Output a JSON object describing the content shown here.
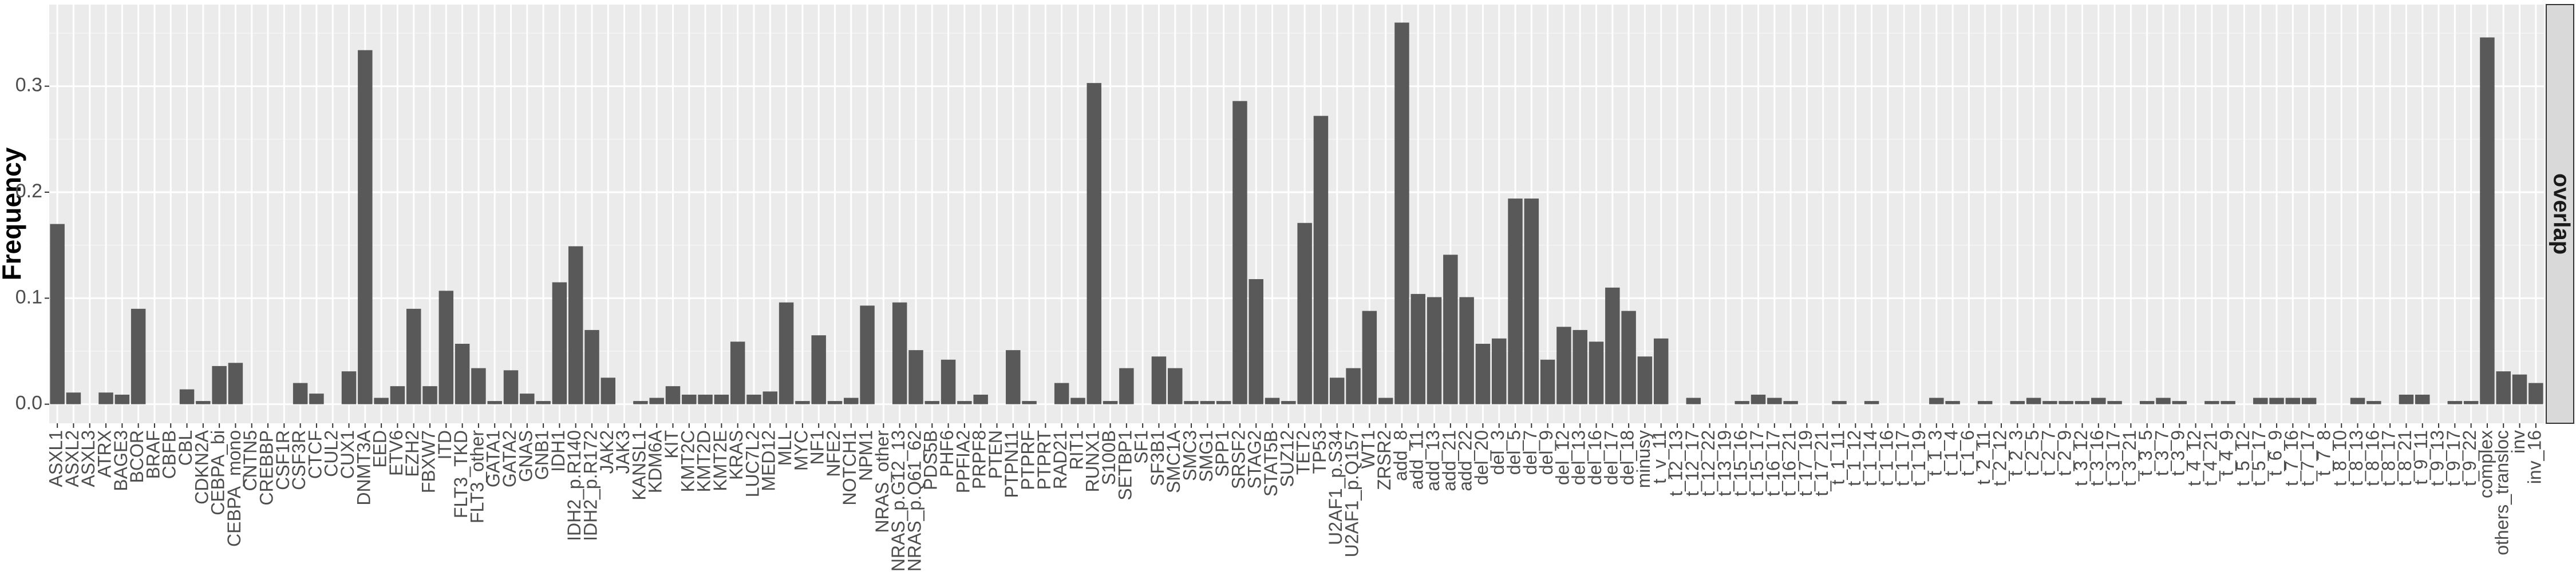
{
  "chart_data": {
    "type": "bar",
    "y_label": "Frequency",
    "facet": "overlap",
    "color": "#595959",
    "grid": true,
    "ylim": [
      -0.018,
      0.377
    ],
    "yticks": [
      {
        "value": 0,
        "label": "0.0"
      },
      {
        "value": 0.1,
        "label": "0.1"
      },
      {
        "value": 0.2,
        "label": "0.2"
      },
      {
        "value": 0.3,
        "label": "0.3"
      }
    ],
    "categories": [
      "ASXL1",
      "ASXL2",
      "ASXL3",
      "ATRX",
      "BAGE3",
      "BCOR",
      "BRAF",
      "CBFB",
      "CBL",
      "CDKN2A",
      "CEBPA_bi",
      "CEBPA_mono",
      "CNTN5",
      "CREBBP",
      "CSF1R",
      "CSF3R",
      "CTCF",
      "CUL2",
      "CUX1",
      "DNMT3A",
      "EED",
      "ETV6",
      "EZH2",
      "FBXW7",
      "ITD",
      "FLT3_TKD",
      "FLT3_other",
      "GATA1",
      "GATA2",
      "GNAS",
      "GNB1",
      "IDH1",
      "IDH2_p.R140",
      "IDH2_p.R172",
      "JAK2",
      "JAK3",
      "KANSL1",
      "KDM6A",
      "KIT",
      "KMT2C",
      "KMT2D",
      "KMT2E",
      "KRAS",
      "LUC7L2",
      "MED12",
      "MLL",
      "MYC",
      "NF1",
      "NFE2",
      "NOTCH1",
      "NPM1",
      "NRAS_other",
      "NRAS_p.G12_13",
      "NRAS_p.Q61_62",
      "PDS5B",
      "PHF6",
      "PPFIA2",
      "PRPF8",
      "PTEN",
      "PTPN11",
      "PTPRF",
      "PTPRT",
      "RAD21",
      "RIT1",
      "RUNX1",
      "S100B",
      "SETBP1",
      "SF1",
      "SF3B1",
      "SMC1A",
      "SMC3",
      "SMG1",
      "SPP1",
      "SRSF2",
      "STAG2",
      "STAT5B",
      "SUZ12",
      "TET2",
      "TP53",
      "U2AF1_p.S34",
      "U2AF1_p.Q157",
      "WT1",
      "ZRSR2",
      "add_8",
      "add_11",
      "add_13",
      "add_21",
      "add_22",
      "del_20",
      "del_3",
      "del_5",
      "del_7",
      "del_9",
      "del_12",
      "del_13",
      "del_16",
      "del_17",
      "del_18",
      "minusy",
      "t_v_11",
      "t_12_13",
      "t_12_17",
      "t_12_22",
      "t_13_19",
      "t_15_16",
      "t_15_17",
      "t_16_17",
      "t_16_21",
      "t_17_19",
      "t_17_21",
      "t_1_11",
      "t_1_12",
      "t_1_14",
      "t_1_16",
      "t_1_17",
      "t_1_19",
      "t_1_3",
      "t_1_4",
      "t_1_6",
      "t_2_11",
      "t_2_12",
      "t_2_3",
      "t_2_5",
      "t_2_7",
      "t_2_9",
      "t_3_12",
      "t_3_16",
      "t_3_17",
      "t_3_21",
      "t_3_5",
      "t_3_7",
      "t_3_9",
      "t_4_12",
      "t_4_21",
      "t_4_9",
      "t_5_12",
      "t_5_17",
      "t_6_9",
      "t_7_16",
      "t_7_17",
      "t_7_8",
      "t_8_10",
      "t_8_13",
      "t_8_16",
      "t_8_17",
      "t_8_21",
      "t_9_11",
      "t_9_13",
      "t_9_17",
      "t_9_22",
      "complex",
      "others_transloc",
      "inv",
      "inv_16"
    ],
    "values": [
      0.17,
      0.011,
      0,
      0.011,
      0.009,
      0.09,
      0,
      0,
      0.014,
      0.003,
      0.036,
      0.039,
      0,
      0,
      0,
      0.02,
      0.01,
      0,
      0.031,
      0.334,
      0.006,
      0.017,
      0.09,
      0.017,
      0.107,
      0.057,
      0.034,
      0.003,
      0.032,
      0.01,
      0.003,
      0.115,
      0.149,
      0.07,
      0.025,
      0,
      0.003,
      0.006,
      0.017,
      0.009,
      0.009,
      0.009,
      0.059,
      0.009,
      0.012,
      0.096,
      0.003,
      0.065,
      0.003,
      0.006,
      0.093,
      0,
      0.096,
      0.051,
      0.003,
      0.042,
      0.003,
      0.009,
      0,
      0.051,
      0.003,
      0,
      0.02,
      0.006,
      0.303,
      0.003,
      0.034,
      0,
      0.045,
      0.034,
      0.003,
      0.003,
      0.003,
      0.286,
      0.118,
      0.006,
      0.003,
      0.171,
      0.272,
      0.025,
      0.034,
      0.088,
      0.006,
      0.36,
      0.104,
      0.101,
      0.141,
      0.101,
      0.057,
      0.062,
      0.194,
      0.194,
      0.042,
      0.073,
      0.07,
      0.059,
      0.11,
      0.088,
      0.045,
      0.062,
      0,
      0.006,
      0,
      0,
      0.003,
      0.009,
      0.006,
      0.003,
      0,
      0,
      0.003,
      0,
      0.003,
      0,
      0,
      0,
      0.006,
      0.003,
      0,
      0.003,
      0,
      0.003,
      0.006,
      0.003,
      0.003,
      0.003,
      0.006,
      0.003,
      0,
      0.003,
      0.006,
      0.003,
      0,
      0.003,
      0.003,
      0,
      0.006,
      0.006,
      0.006,
      0.006,
      0,
      0,
      0.006,
      0.003,
      0,
      0.009,
      0.009,
      0,
      0.003,
      0.003,
      0.346,
      0.031,
      0.028,
      0.02
    ]
  }
}
